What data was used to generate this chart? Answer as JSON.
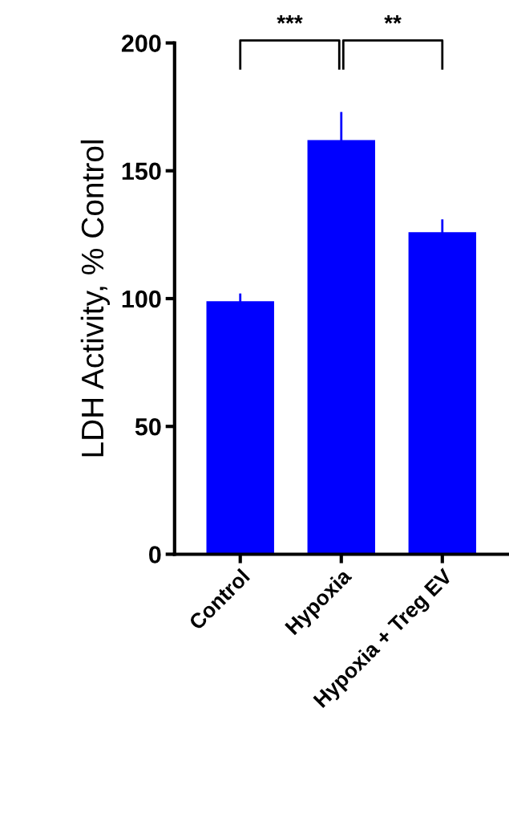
{
  "chart_data": {
    "type": "bar",
    "ylabel": "LDH Activity, % Control",
    "categories": [
      "Control",
      "Hypoxia",
      "Hypoxia + Treg EV"
    ],
    "series": [
      {
        "color": "#0000ff",
        "values": [
          99,
          162,
          126
        ],
        "errors": [
          3,
          11,
          5
        ]
      }
    ],
    "ylim": [
      0,
      200
    ],
    "yticks": [
      0,
      50,
      100,
      150,
      200
    ],
    "grid": false,
    "legend": false,
    "annotations": [
      "***",
      "**"
    ]
  }
}
